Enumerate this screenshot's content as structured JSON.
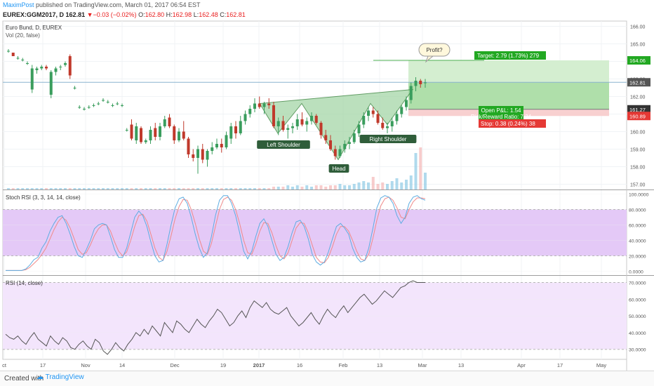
{
  "header": {
    "author": "MaximPost",
    "published_text": "published on TradingView.com, March 01, 2017 06:54 EST",
    "symbol": "EUREX:GGM2017, D",
    "price": "162.81",
    "change": "−0.03 (−0.02%)",
    "o_label": "O:",
    "o_value": "162.80",
    "h_label": "H:",
    "h_value": "162.98",
    "l_label": "L:",
    "l_value": "162.48",
    "c_label": "C:",
    "c_value": "162.81"
  },
  "footer": {
    "created": "Created with",
    "brand": "TradingView"
  },
  "chart_data": {
    "type": "candlestick",
    "main": {
      "title": "Euro Bund, D, EUREX",
      "volume_label": "Vol (20, false)",
      "ylim": [
        156.7,
        166.3
      ],
      "y_ticks": [
        "157.00",
        "158.00",
        "159.00",
        "160.00",
        "161.00",
        "162.00",
        "163.00",
        "164.00",
        "165.00",
        "166.00"
      ],
      "price_badges": [
        {
          "value": "164.06",
          "color": "#22a822"
        },
        {
          "value": "162.81",
          "color": "#555555"
        },
        {
          "value": "161.27",
          "color": "#333333"
        },
        {
          "value": "160.89",
          "color": "#e53935"
        }
      ],
      "candles_ohlc": [
        [
          164.6,
          164.7,
          164.5,
          164.6
        ],
        [
          164.5,
          164.5,
          164.3,
          164.3
        ],
        [
          164.2,
          164.3,
          164.1,
          164.2
        ],
        [
          164.1,
          164.2,
          164.0,
          164.1
        ],
        [
          163.9,
          164.0,
          163.8,
          163.9
        ],
        [
          162.4,
          163.8,
          162.2,
          163.6
        ],
        [
          163.5,
          163.7,
          163.3,
          163.6
        ],
        [
          163.6,
          163.8,
          163.5,
          163.7
        ],
        [
          163.7,
          163.8,
          163.5,
          163.6
        ],
        [
          162.1,
          163.5,
          161.9,
          163.4
        ],
        [
          163.4,
          163.7,
          163.2,
          163.6
        ],
        [
          163.7,
          163.8,
          163.5,
          163.7
        ],
        [
          163.8,
          164.0,
          163.7,
          163.9
        ],
        [
          164.3,
          164.4,
          163.0,
          163.2
        ],
        [
          162.5,
          162.6,
          162.4,
          162.5
        ],
        [
          161.4,
          161.5,
          161.3,
          161.4
        ],
        [
          161.3,
          161.4,
          161.2,
          161.3
        ],
        [
          161.4,
          161.5,
          161.3,
          161.4
        ],
        [
          161.5,
          161.6,
          161.4,
          161.5
        ],
        [
          161.6,
          161.7,
          161.5,
          161.6
        ],
        [
          161.8,
          161.9,
          161.7,
          161.8
        ],
        [
          161.7,
          161.8,
          161.6,
          161.7
        ],
        [
          161.5,
          161.6,
          161.4,
          161.5
        ],
        [
          161.6,
          161.7,
          161.5,
          161.6
        ],
        [
          161.5,
          161.6,
          161.4,
          161.5
        ],
        [
          160.1,
          160.2,
          160.0,
          160.1
        ],
        [
          160.4,
          160.7,
          159.5,
          159.6
        ],
        [
          159.5,
          160.5,
          159.3,
          160.3
        ],
        [
          160.2,
          160.3,
          159.3,
          159.4
        ],
        [
          159.4,
          159.6,
          159.3,
          159.5
        ],
        [
          159.5,
          160.3,
          159.3,
          160.1
        ],
        [
          160.2,
          160.5,
          159.5,
          159.7
        ],
        [
          159.7,
          160.5,
          159.5,
          160.3
        ],
        [
          160.3,
          160.9,
          160.2,
          160.7
        ],
        [
          160.8,
          161.0,
          160.2,
          160.3
        ],
        [
          160.3,
          160.4,
          159.3,
          159.5
        ],
        [
          159.5,
          160.2,
          159.4,
          160.0
        ],
        [
          160.0,
          160.6,
          159.5,
          159.6
        ],
        [
          159.6,
          159.7,
          158.5,
          158.7
        ],
        [
          158.7,
          159.0,
          158.3,
          158.5
        ],
        [
          158.5,
          159.2,
          157.6,
          159.0
        ],
        [
          159.0,
          159.3,
          158.2,
          158.4
        ],
        [
          158.4,
          159.0,
          158.0,
          158.9
        ],
        [
          158.9,
          159.4,
          158.7,
          159.1
        ],
        [
          159.1,
          159.6,
          159.0,
          159.3
        ],
        [
          159.3,
          159.6,
          158.8,
          159.1
        ],
        [
          159.1,
          160.0,
          159.0,
          159.8
        ],
        [
          159.6,
          160.5,
          159.3,
          160.3
        ],
        [
          160.3,
          160.6,
          159.6,
          159.9
        ],
        [
          159.9,
          160.9,
          159.8,
          160.6
        ],
        [
          160.6,
          161.2,
          160.4,
          161.0
        ],
        [
          161.0,
          161.5,
          160.8,
          161.3
        ],
        [
          161.3,
          161.9,
          161.1,
          161.6
        ],
        [
          161.6,
          162.0,
          161.3,
          161.4
        ],
        [
          161.4,
          161.7,
          161.0,
          161.6
        ],
        [
          161.6,
          161.9,
          161.3,
          161.5
        ],
        [
          161.5,
          161.7,
          160.2,
          160.3
        ],
        [
          160.3,
          160.8,
          159.8,
          160.6
        ],
        [
          160.6,
          160.9,
          160.0,
          160.1
        ],
        [
          160.1,
          160.4,
          159.6,
          160.2
        ],
        [
          160.2,
          160.5,
          159.9,
          160.3
        ],
        [
          160.3,
          161.0,
          160.1,
          160.7
        ],
        [
          160.7,
          161.1,
          160.3,
          160.4
        ],
        [
          160.4,
          160.8,
          160.0,
          160.6
        ],
        [
          160.6,
          161.1,
          160.4,
          160.9
        ],
        [
          160.9,
          161.0,
          160.4,
          160.5
        ],
        [
          160.5,
          160.6,
          159.6,
          159.8
        ],
        [
          159.8,
          160.1,
          159.3,
          159.5
        ],
        [
          159.5,
          159.8,
          158.9,
          159.0
        ],
        [
          159.0,
          159.2,
          158.4,
          158.6
        ],
        [
          158.6,
          159.2,
          158.5,
          159.0
        ],
        [
          159.0,
          159.5,
          158.8,
          159.3
        ],
        [
          159.3,
          159.7,
          159.0,
          159.4
        ],
        [
          159.4,
          160.1,
          159.3,
          159.9
        ],
        [
          159.9,
          160.6,
          159.7,
          160.4
        ],
        [
          160.4,
          161.1,
          160.2,
          160.9
        ],
        [
          160.9,
          161.4,
          160.6,
          161.2
        ],
        [
          161.2,
          161.4,
          160.8,
          161.0
        ],
        [
          161.0,
          161.2,
          160.4,
          160.5
        ],
        [
          160.5,
          160.8,
          160.1,
          160.2
        ],
        [
          160.2,
          160.5,
          159.9,
          160.3
        ],
        [
          160.3,
          160.8,
          160.0,
          160.6
        ],
        [
          160.6,
          161.2,
          160.4,
          161.0
        ],
        [
          161.0,
          161.5,
          160.8,
          161.4
        ],
        [
          161.4,
          162.0,
          161.2,
          161.8
        ],
        [
          161.8,
          162.8,
          161.6,
          162.6
        ],
        [
          162.6,
          163.1,
          162.3,
          162.9
        ],
        [
          162.9,
          163.0,
          162.5,
          162.7
        ],
        [
          162.8,
          163.0,
          162.5,
          162.8
        ]
      ],
      "volume": [
        1,
        1,
        1,
        1,
        1,
        1,
        1,
        1,
        1,
        1,
        1,
        1,
        1,
        1,
        1,
        1,
        1,
        1,
        1,
        1,
        1,
        1,
        1,
        1,
        1,
        1,
        1,
        1,
        1,
        1,
        1,
        1,
        1,
        1,
        1,
        1,
        1,
        1,
        1,
        1,
        1,
        1,
        1,
        1,
        1,
        1,
        1,
        1,
        1,
        1,
        1,
        1,
        1,
        1,
        1,
        1,
        2,
        2,
        2,
        3,
        2,
        3,
        2,
        3,
        2,
        3,
        3,
        2,
        3,
        3,
        4,
        3,
        3,
        4,
        5,
        6,
        5,
        9,
        4,
        5,
        4,
        6,
        8,
        5,
        7,
        10,
        26,
        30,
        12
      ],
      "pattern": {
        "left_shoulder_label": "Left Shoulder",
        "head_label": "Head",
        "right_shoulder_label": "Right Shoulder",
        "points": [
          [
            370,
            161.6
          ],
          [
            396,
            159.9
          ],
          [
            430,
            161.6
          ],
          [
            482,
            158.4
          ],
          [
            528,
            161.6
          ],
          [
            552,
            160.4
          ],
          [
            588,
            162.4
          ]
        ]
      },
      "position": {
        "profit_callout": "Profit?",
        "target_label": "Target: 2.79 (1.73%) 279",
        "open_pnl_label": "Open P&L: 1.54",
        "risk_reward_label": "Risk/Reward Ratio: 7.34",
        "stop_label": "Stop: 0.38 (0.24%) 38",
        "target_price": 164.06,
        "entry_price": 161.27,
        "stop_price": 160.89,
        "current_price": 162.81
      }
    },
    "stoch_rsi": {
      "label": "Stoch RSI (3, 3, 14, 14, close)",
      "ylim": [
        -5,
        105
      ],
      "y_ticks": [
        "100.0000",
        "80.0000",
        "60.0000",
        "40.0000",
        "20.0000",
        "0.0000"
      ],
      "band": [
        20,
        80
      ],
      "k": [
        1,
        1,
        1,
        1,
        1,
        3,
        8,
        15,
        18,
        30,
        38,
        52,
        62,
        70,
        72,
        62,
        48,
        32,
        20,
        18,
        28,
        40,
        55,
        60,
        62,
        60,
        45,
        28,
        18,
        18,
        30,
        50,
        70,
        78,
        72,
        58,
        38,
        20,
        12,
        14,
        35,
        60,
        82,
        94,
        96,
        88,
        70,
        48,
        30,
        18,
        24,
        45,
        72,
        92,
        98,
        98,
        88,
        72,
        50,
        26,
        16,
        26,
        45,
        62,
        68,
        58,
        40,
        22,
        14,
        18,
        32,
        50,
        64,
        66,
        58,
        42,
        22,
        12,
        8,
        12,
        25,
        42,
        58,
        62,
        56,
        48,
        30,
        18,
        12,
        14,
        30,
        55,
        82,
        95,
        98,
        96,
        88,
        72,
        62,
        70,
        88,
        96,
        98,
        94,
        92
      ],
      "d": [
        1,
        1,
        1,
        1,
        1,
        2,
        5,
        10,
        15,
        22,
        30,
        42,
        54,
        64,
        70,
        66,
        56,
        42,
        28,
        22,
        24,
        34,
        46,
        55,
        60,
        60,
        52,
        38,
        26,
        20,
        25,
        40,
        58,
        72,
        74,
        65,
        48,
        30,
        18,
        14,
        26,
        46,
        68,
        84,
        93,
        92,
        80,
        62,
        42,
        26,
        22,
        36,
        58,
        80,
        93,
        96,
        92,
        80,
        62,
        40,
        24,
        22,
        35,
        52,
        63,
        62,
        50,
        33,
        20,
        16,
        24,
        40,
        56,
        63,
        62,
        50,
        34,
        18,
        12,
        11,
        18,
        32,
        48,
        58,
        58,
        52,
        40,
        26,
        16,
        14,
        22,
        42,
        66,
        85,
        94,
        96,
        92,
        82,
        70,
        68,
        80,
        90,
        95,
        95,
        94
      ]
    },
    "rsi": {
      "label": "RSI (14, close)",
      "ylim": [
        24,
        74
      ],
      "y_ticks": [
        "70.0000",
        "60.0000",
        "50.0000",
        "40.0000",
        "30.0000"
      ],
      "band": [
        30,
        70
      ],
      "values": [
        39,
        37,
        36,
        38,
        35,
        33,
        37,
        40,
        36,
        34,
        32,
        38,
        35,
        33,
        37,
        35,
        31,
        30,
        33,
        35,
        32,
        30,
        36,
        34,
        29,
        27,
        30,
        34,
        31,
        29,
        33,
        36,
        40,
        38,
        42,
        39,
        44,
        41,
        38,
        46,
        43,
        40,
        47,
        45,
        42,
        40,
        44,
        48,
        45,
        43,
        47,
        50,
        54,
        52,
        48,
        44,
        46,
        50,
        53,
        49,
        55,
        59,
        57,
        55,
        58,
        54,
        52,
        51,
        53,
        55,
        50,
        47,
        44,
        46,
        49,
        52,
        48,
        45,
        50,
        54,
        51,
        49,
        53,
        56,
        52,
        55,
        58,
        61,
        63,
        60,
        57,
        59,
        62,
        65,
        63,
        61,
        64,
        67,
        68,
        70,
        71,
        70,
        70,
        70
      ]
    },
    "x_axis_labels": [
      "ct",
      "17",
      "Nov",
      "14",
      "Dec",
      "19",
      "2017",
      "16",
      "Feb",
      "13",
      "Mar",
      "13",
      "Apr",
      "17",
      "May"
    ]
  }
}
